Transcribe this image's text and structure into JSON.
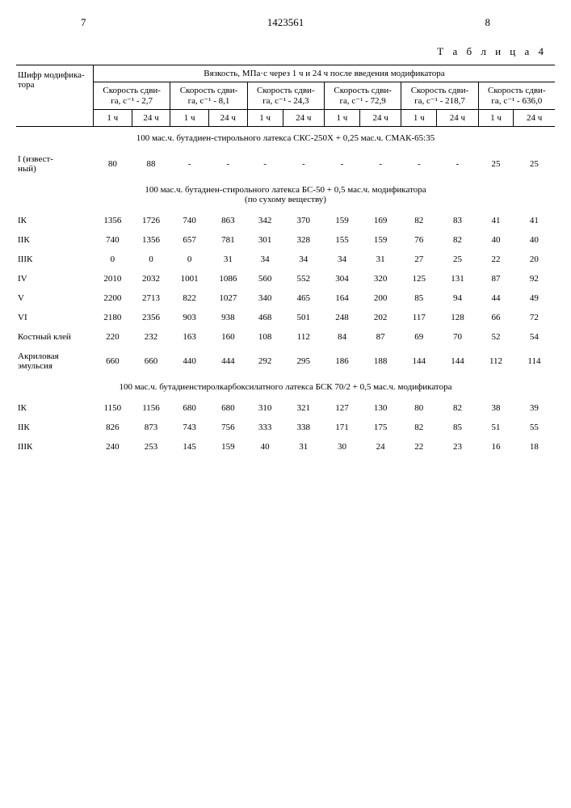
{
  "header": {
    "left_page": "7",
    "doc_number": "1423561",
    "right_page": "8"
  },
  "table_label": "Т а б л и ц а 4",
  "columns": {
    "row_label_header1": "Шифр модифика-",
    "row_label_header2": "тора",
    "viscosity_header": "Вязкость, МПа·с через 1 ч и 24 ч после введения модификатора",
    "shear_label": "Скорость сдви-",
    "shear_label2_prefix": "га, с⁻¹ - ",
    "shear_values": [
      "2,7",
      "8,1",
      "24,3",
      "72,9",
      "218,7",
      "636,0"
    ],
    "sub_1h": "1 ч",
    "sub_24h": "24 ч"
  },
  "sections": [
    {
      "title": "100 мас.ч. бутадиен-стирольного латекса   СКС-250Х + 0,25 мас.ч. СМАК-65:35",
      "rows": [
        {
          "label": "I (извест-\nный)",
          "vals": [
            "80",
            "88",
            "-",
            "-",
            "-",
            "-",
            "-",
            "-",
            "-",
            "-",
            "25",
            "25"
          ]
        }
      ]
    },
    {
      "title": "100 мас.ч. бутадиен-стирольного латекса   БС-50 + 0,5 мас.ч. модификатора\n(по сухому веществу)",
      "rows": [
        {
          "label": "IК",
          "vals": [
            "1356",
            "1726",
            "740",
            "863",
            "342",
            "370",
            "159",
            "169",
            "82",
            "83",
            "41",
            "41"
          ]
        },
        {
          "label": "IIК",
          "vals": [
            "740",
            "1356",
            "657",
            "781",
            "301",
            "328",
            "155",
            "159",
            "76",
            "82",
            "40",
            "40"
          ]
        },
        {
          "label": "IIIК",
          "vals": [
            "0",
            "0",
            "0",
            "31",
            "34",
            "34",
            "34",
            "31",
            "27",
            "25",
            "22",
            "20"
          ]
        },
        {
          "label": "IV",
          "vals": [
            "2010",
            "2032",
            "1001",
            "1086",
            "560",
            "552",
            "304",
            "320",
            "125",
            "131",
            "87",
            "92"
          ]
        },
        {
          "label": "V",
          "vals": [
            "2200",
            "2713",
            "822",
            "1027",
            "340",
            "465",
            "164",
            "200",
            "85",
            "94",
            "44",
            "49"
          ]
        },
        {
          "label": "VI",
          "vals": [
            "2180",
            "2356",
            "903",
            "938",
            "468",
            "501",
            "248",
            "202",
            "117",
            "128",
            "66",
            "72"
          ]
        },
        {
          "label": "Костный клей",
          "vals": [
            "220",
            "232",
            "163",
            "160",
            "108",
            "112",
            "84",
            "87",
            "69",
            "70",
            "52",
            "54"
          ]
        },
        {
          "label": "Акриловая\nэмульсия",
          "vals": [
            "660",
            "660",
            "440",
            "444",
            "292",
            "295",
            "186",
            "188",
            "144",
            "144",
            "112",
            "114"
          ]
        }
      ]
    },
    {
      "title": "100 мас.ч. бутадиенстиролкарбоксилатного латекса БСК 70/2 + 0,5 мас.ч. модификатора",
      "rows": [
        {
          "label": "IК",
          "vals": [
            "1150",
            "1156",
            "680",
            "680",
            "310",
            "321",
            "127",
            "130",
            "80",
            "82",
            "38",
            "39"
          ]
        },
        {
          "label": "IIК",
          "vals": [
            "826",
            "873",
            "743",
            "756",
            "333",
            "338",
            "171",
            "175",
            "82",
            "85",
            "51",
            "55"
          ]
        },
        {
          "label": "IIIК",
          "vals": [
            "240",
            "253",
            "145",
            "159",
            "40",
            "31",
            "30",
            "24",
            "22",
            "23",
            "16",
            "18"
          ]
        }
      ]
    }
  ]
}
